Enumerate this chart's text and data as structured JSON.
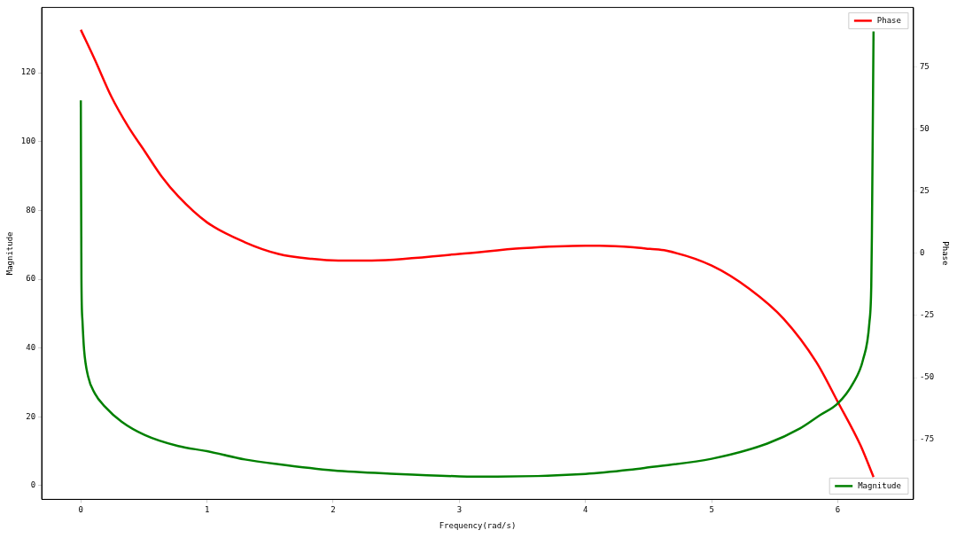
{
  "chart_data": {
    "type": "line",
    "xlabel": "Frequency(rad/s)",
    "ylabel": "Magnitude",
    "y2label": "Phase",
    "xlim": [
      -0.31,
      6.6
    ],
    "xticks": [
      0,
      1,
      2,
      3,
      4,
      5,
      6
    ],
    "ylim": [
      -4,
      139
    ],
    "yticks": [
      0,
      20,
      40,
      60,
      80,
      100,
      120
    ],
    "y2lim": [
      -99,
      99
    ],
    "y2ticks": [
      -75,
      -50,
      -25,
      0,
      25,
      50,
      75
    ],
    "grid": false,
    "legend": "right",
    "marker": "none",
    "line_style": "solid",
    "series": [
      {
        "name": "Magnitude",
        "color": "#008000",
        "axis": "y",
        "x": [
          0,
          0.005,
          0.013,
          0.026,
          0.058,
          0.111,
          0.19,
          0.323,
          0.508,
          0.772,
          1,
          1.3,
          1.566,
          2,
          2.5,
          3,
          3.3,
          4,
          4.35,
          4.5,
          5,
          5.44,
          5.7,
          5.86,
          6,
          6.12,
          6.2,
          6.25,
          6.265,
          6.27,
          6.283
        ],
        "values": [
          112,
          60,
          48,
          39.5,
          31.7,
          26.8,
          23,
          18.6,
          14.7,
          11.5,
          10,
          7.6,
          6.2,
          4.4,
          3.4,
          2.7,
          2.6,
          3.4,
          4.6,
          5.3,
          7.8,
          12.2,
          16.6,
          20.5,
          23.9,
          29.7,
          36.6,
          47.3,
          58,
          72.7,
          132
        ]
      },
      {
        "name": "Phase",
        "color": "#ff0000",
        "axis": "y2",
        "x": [
          0,
          0.111,
          0.243,
          0.376,
          0.508,
          0.64,
          0.772,
          1,
          1.3,
          1.566,
          1.83,
          2.04,
          2.26,
          3,
          3.5,
          4,
          4.11,
          4.38,
          4.51,
          4.64,
          5,
          5.3,
          5.57,
          5.83,
          6,
          6.18,
          6.283
        ],
        "values": [
          90,
          78,
          63,
          51,
          41,
          31,
          23,
          12.5,
          4.5,
          -0.2,
          -2.2,
          -2.9,
          -2.9,
          -0.2,
          2.1,
          3.1,
          3.1,
          2.5,
          1.8,
          1.1,
          -4.9,
          -14.3,
          -26.3,
          -43.8,
          -59.8,
          -77.3,
          -90
        ]
      }
    ]
  }
}
